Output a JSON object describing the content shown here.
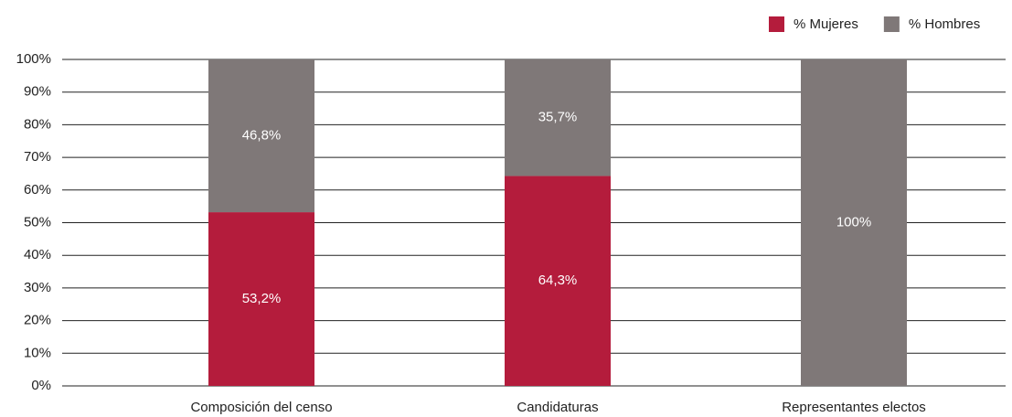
{
  "chart_data": {
    "type": "stacked_bar",
    "categories": [
      "Composición del censo",
      "Candidaturas",
      "Representantes electos"
    ],
    "series": [
      {
        "name": "% Mujeres",
        "color": "#b41c3c",
        "values": [
          53.2,
          64.3,
          0
        ],
        "value_labels": [
          "53,2%",
          "64,3%",
          null
        ]
      },
      {
        "name": "% Hombres",
        "color": "#7f7878",
        "values": [
          46.8,
          35.7,
          100
        ],
        "value_labels": [
          "46,8%",
          "35,7%",
          "100%"
        ]
      }
    ],
    "ylim": [
      0,
      100
    ],
    "yticks": [
      {
        "value": 0,
        "label": "0%"
      },
      {
        "value": 10,
        "label": "10%"
      },
      {
        "value": 20,
        "label": "20%"
      },
      {
        "value": 30,
        "label": "30%"
      },
      {
        "value": 40,
        "label": "40%"
      },
      {
        "value": 50,
        "label": "50%"
      },
      {
        "value": 60,
        "label": "60%"
      },
      {
        "value": 70,
        "label": "70%"
      },
      {
        "value": 80,
        "label": "80%"
      },
      {
        "value": 90,
        "label": "90%"
      },
      {
        "value": 100,
        "label": "100%"
      }
    ],
    "grid": true,
    "legend": "top-right"
  }
}
